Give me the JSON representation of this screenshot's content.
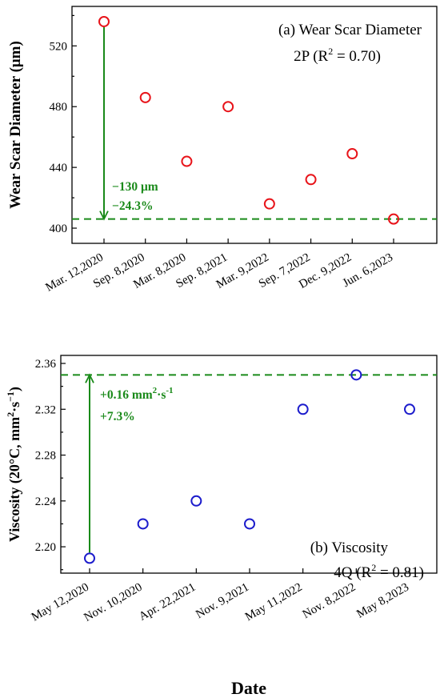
{
  "colors": {
    "panel_a_marker": "#e8141a",
    "panel_b_marker": "#1c1ccc",
    "reference": "#1a8a1a"
  },
  "chart_data": [
    {
      "type": "scatter",
      "panel": "a",
      "title": "(a) Wear Scar Diameter",
      "subtitle": "2P (R² = 0.70)",
      "subtitle_parts": {
        "pre": "2P (R",
        "sup": "2",
        "post": " = 0.70)"
      },
      "ylabel": "Wear Scar Diameter (μm)",
      "categories": [
        "Mar. 12,2020",
        "Sep. 8,2020",
        "Mar. 8,2020",
        "Sep. 8,2021",
        "Mar. 9,2022",
        "Sep. 7,2022",
        "Dec. 9,2022",
        "Jun. 6,2023"
      ],
      "values": [
        536,
        486,
        444,
        480,
        416,
        432,
        449,
        406
      ],
      "ylim": [
        390,
        546
      ],
      "yticks": [
        400,
        440,
        480,
        520
      ],
      "ytick_labels": [
        "400",
        "440",
        "480",
        "520"
      ],
      "reference_line": 406,
      "annotation": {
        "line1": "−130 μm",
        "line2": "−24.3%",
        "from": 536,
        "to": 406
      },
      "marker_color": "#e8141a"
    },
    {
      "type": "scatter",
      "panel": "b",
      "title": "(b) Viscosity",
      "subtitle": "4Q (R² = 0.81)",
      "subtitle_parts": {
        "pre": "4Q (R",
        "sup": "2",
        "post": " = 0.81)"
      },
      "ylabel": "Viscosity (20°C, mm²·s⁻¹)",
      "ylabel_parts": {
        "pre": "Viscosity (20°C, mm",
        "sup1": "2",
        "mid": "·s",
        "sup2": "−1",
        "post": ")"
      },
      "categories": [
        "May 12,2020",
        "Nov. 10,2020",
        "Apr. 22,2021",
        "Nov. 9,2021",
        "May 11,2022",
        "Nov. 8,2022",
        "May 8,2023"
      ],
      "values": [
        2.19,
        2.22,
        2.24,
        2.22,
        2.32,
        2.35,
        2.32
      ],
      "ylim": [
        2.177,
        2.367
      ],
      "yticks": [
        2.2,
        2.24,
        2.28,
        2.32,
        2.36
      ],
      "ytick_labels": [
        "2.20",
        "2.24",
        "2.28",
        "2.32",
        "2.36"
      ],
      "reference_line": 2.35,
      "annotation": {
        "line1": "+0.16 mm²·s⁻¹",
        "line1_parts": {
          "pre": "+0.16 mm",
          "sup1": "2",
          "mid": "·s",
          "sup2": "-1"
        },
        "line2": "+7.3%",
        "from": 2.19,
        "to": 2.35
      },
      "marker_color": "#1c1ccc"
    }
  ],
  "xlabel": "Date"
}
